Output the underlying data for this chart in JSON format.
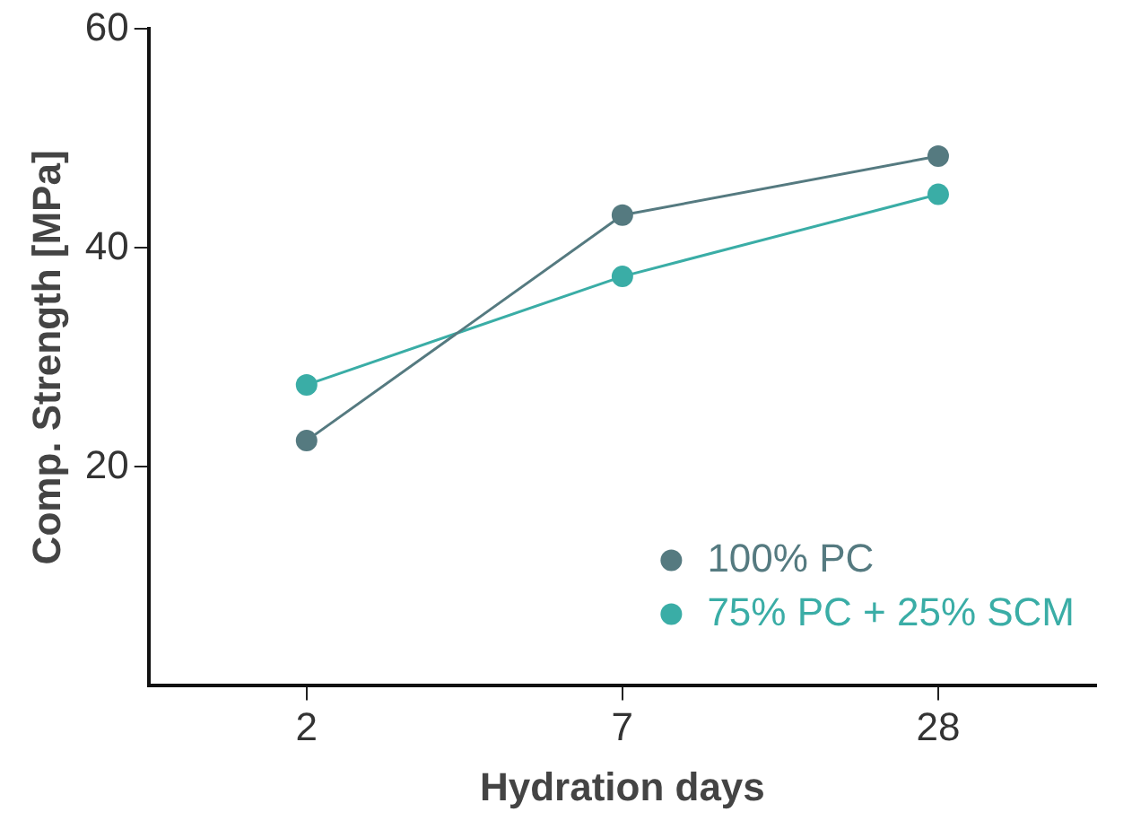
{
  "chart_data": {
    "type": "line",
    "xlabel": "Hydration days",
    "ylabel": "Comp. Strength [MPa]",
    "categories": [
      "2",
      "7",
      "28"
    ],
    "series": [
      {
        "name": "100% PC",
        "color": "#557a80",
        "values": [
          22.4,
          43.0,
          48.4
        ]
      },
      {
        "name": "75% PC + 25% SCM",
        "color": "#3aada6",
        "values": [
          27.5,
          37.4,
          44.9
        ]
      }
    ],
    "ylim": [
      0,
      60
    ],
    "yticks": [
      20,
      40,
      60
    ],
    "grid": false,
    "legend": "bottom right",
    "marker": "circle",
    "line_style": "solid"
  }
}
